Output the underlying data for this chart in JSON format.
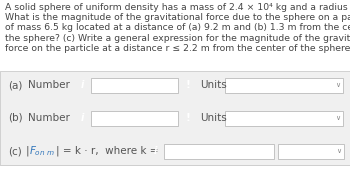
{
  "title_lines": [
    "A solid sphere of uniform density has a mass of 2.4 × 10⁴ kg and a radius of 2.2 m.",
    "What is the magnitude of the gravitational force due to the sphere on a particle",
    "of mass 6.5 kg located at a distance of (a) 9.2 m and (b) 1.3 m from the center of",
    "the sphere? (c) Write a general expression for the magnitude of the gravitational",
    "force on the particle at a distance r ≤ 2.2 m from the center of the sphere."
  ],
  "blue_color": "#4b8fd4",
  "orange_color": "#e8682a",
  "bg_color": "#ffffff",
  "row_bg": "#f7f7f7",
  "border_color": "#d8d8d8",
  "text_color": "#555555",
  "title_color": "#444444",
  "units_text": "Units",
  "info_text": "i",
  "exclaim_text": "!",
  "row_a_prefix": "(a)",
  "row_a_label": "Number",
  "row_b_prefix": "(b)",
  "row_b_label": "Number",
  "row_c_text": "(c)   |F",
  "row_c_sub": "on m",
  "row_c_rest": "| = k · r,  where k ="
}
